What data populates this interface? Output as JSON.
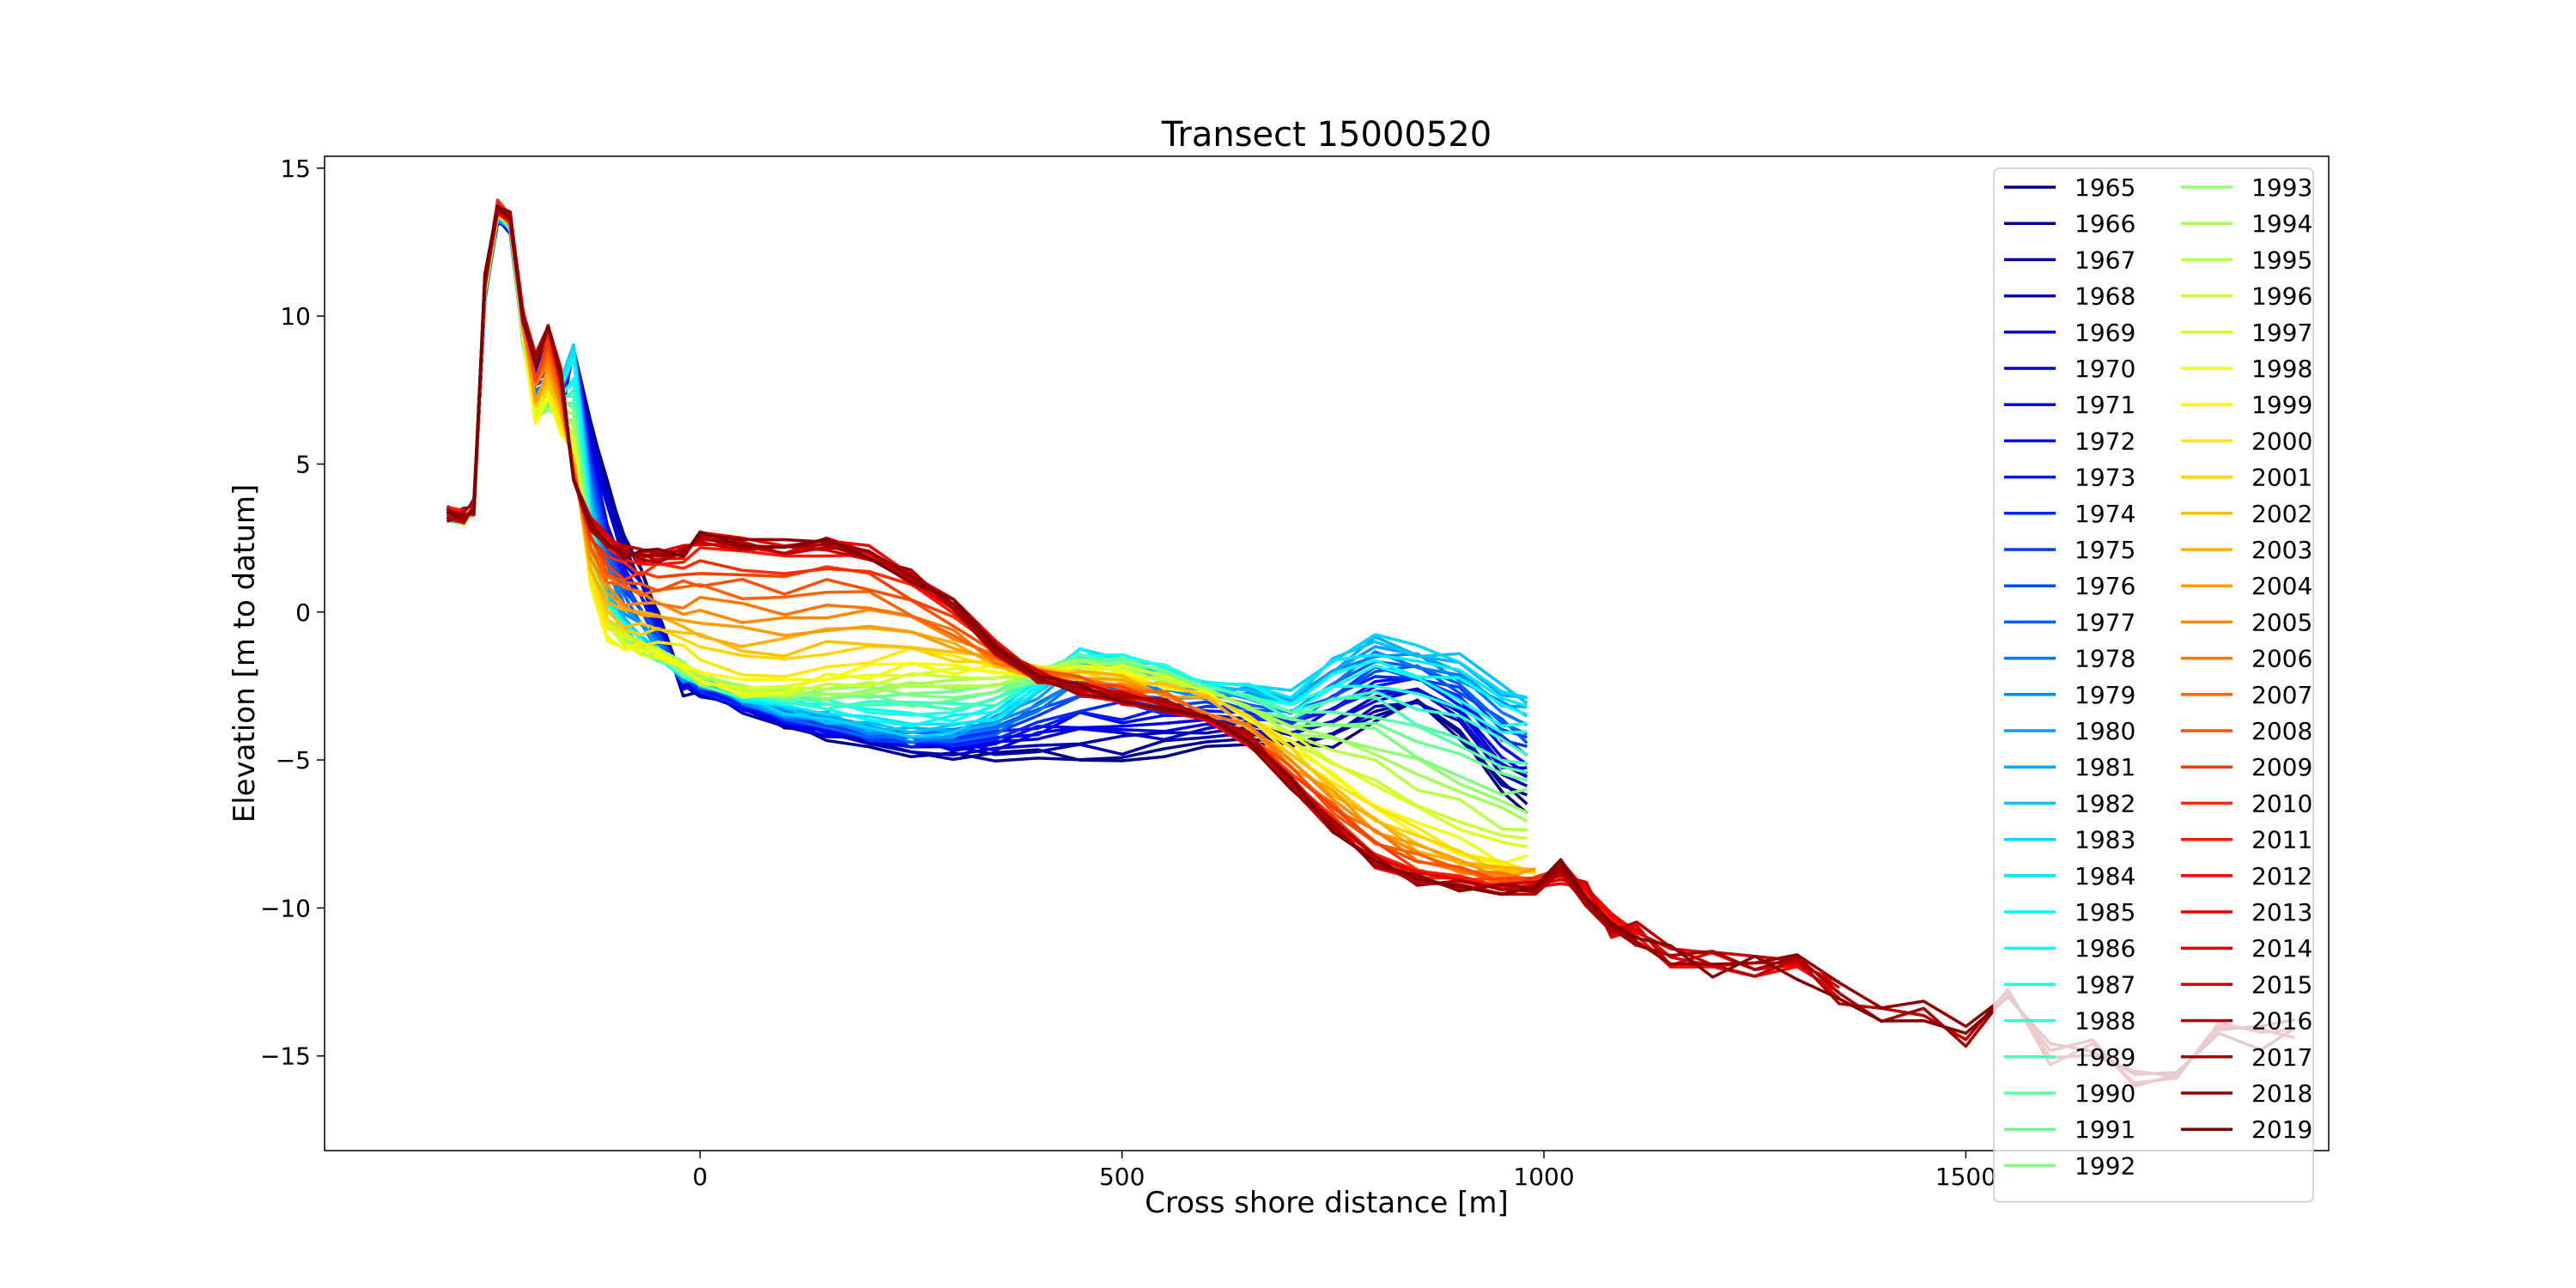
{
  "chart_data": {
    "type": "line",
    "title": "Transect 15000520",
    "xlabel": "Cross shore distance [m]",
    "ylabel": "Elevation [m to datum]",
    "xlim": [
      -445,
      1930
    ],
    "ylim": [
      -18.2,
      15.4
    ],
    "xticks": [
      0,
      500,
      1000,
      1500
    ],
    "yticks": [
      15,
      10,
      5,
      0,
      -5,
      -10,
      -15
    ],
    "grid": false,
    "legend_position": "right",
    "legend_columns": 2,
    "colormap": "jet",
    "years": [
      1965,
      1966,
      1967,
      1968,
      1969,
      1970,
      1971,
      1972,
      1973,
      1974,
      1975,
      1976,
      1977,
      1978,
      1979,
      1980,
      1981,
      1982,
      1983,
      1984,
      1985,
      1986,
      1987,
      1988,
      1989,
      1990,
      1991,
      1992,
      1993,
      1994,
      1995,
      1996,
      1997,
      1998,
      1999,
      2000,
      2001,
      2002,
      2003,
      2004,
      2005,
      2006,
      2007,
      2008,
      2009,
      2010,
      2011,
      2012,
      2013,
      2014,
      2015,
      2016,
      2017,
      2018,
      2019
    ],
    "profile_keypoints_note": "",
    "series_templates": {
      "early": {
        "x": [
          -300,
          -280,
          -268,
          -255,
          -240,
          -225,
          -210,
          -195,
          -180,
          -165,
          -150,
          -130,
          -110,
          -90,
          -70,
          -50,
          -20,
          0,
          50,
          100,
          150,
          200,
          250,
          300,
          350,
          400,
          450,
          500,
          550,
          600,
          650,
          700,
          750,
          800,
          850,
          900,
          950,
          980
        ],
        "y": [
          3.4,
          3.3,
          3.6,
          10.5,
          13.3,
          13.0,
          9.5,
          8.6,
          9.3,
          6.5,
          8.8,
          6.5,
          4.5,
          2.5,
          1.5,
          0.0,
          -2.6,
          -2.7,
          -3.3,
          -3.8,
          -4.2,
          -4.5,
          -4.7,
          -4.8,
          -4.9,
          -4.9,
          -5.0,
          -5.0,
          -4.8,
          -4.5,
          -4.3,
          -4.6,
          -4.5,
          -3.6,
          -3.2,
          -4.2,
          -6.0,
          -6.6
        ]
      },
      "mid": {
        "x": [
          -300,
          -280,
          -268,
          -255,
          -240,
          -225,
          -210,
          -195,
          -180,
          -165,
          -150,
          -130,
          -110,
          -90,
          -70,
          -50,
          -20,
          0,
          50,
          100,
          150,
          200,
          250,
          300,
          350,
          400,
          450,
          500,
          550,
          600,
          650,
          700,
          750,
          800,
          850,
          900,
          950,
          980
        ],
        "y": [
          3.3,
          3.2,
          3.5,
          10.8,
          13.5,
          13.1,
          9.3,
          7.0,
          7.2,
          7.8,
          8.8,
          3.5,
          0.5,
          -0.5,
          -1.0,
          -1.5,
          -2.0,
          -2.3,
          -2.8,
          -3.2,
          -3.5,
          -3.8,
          -4.0,
          -3.9,
          -3.5,
          -2.5,
          -1.3,
          -1.5,
          -1.8,
          -2.2,
          -2.5,
          -2.8,
          -1.5,
          -0.8,
          -1.2,
          -1.5,
          -2.5,
          -2.7
        ]
      },
      "late_mid": {
        "x": [
          -300,
          -280,
          -268,
          -255,
          -240,
          -225,
          -210,
          -195,
          -180,
          -165,
          -150,
          -130,
          -110,
          -90,
          -70,
          -50,
          -20,
          0,
          50,
          100,
          150,
          200,
          250,
          300,
          350,
          400,
          450,
          500,
          550,
          600,
          650,
          700,
          750,
          800,
          850,
          900,
          950,
          990
        ],
        "y": [
          3.3,
          3.2,
          3.5,
          11.0,
          13.6,
          13.2,
          9.5,
          6.5,
          7.0,
          6.2,
          5.5,
          1.0,
          -0.8,
          -1.2,
          -1.3,
          -1.4,
          -1.8,
          -2.2,
          -2.6,
          -2.6,
          -2.3,
          -2.0,
          -1.8,
          -1.8,
          -1.9,
          -2.0,
          -2.0,
          -2.1,
          -2.4,
          -2.9,
          -3.6,
          -4.5,
          -5.6,
          -6.5,
          -7.3,
          -8.0,
          -8.5,
          -8.6
        ]
      },
      "late": {
        "x": [
          -300,
          -280,
          -268,
          -255,
          -240,
          -225,
          -210,
          -195,
          -180,
          -165,
          -150,
          -130,
          -110,
          -90,
          -70,
          -50,
          -20,
          0,
          50,
          100,
          150,
          200,
          250,
          300,
          350,
          400,
          450,
          500,
          550,
          600,
          650,
          700,
          750,
          800,
          850,
          900,
          950,
          990
        ],
        "y": [
          3.3,
          3.2,
          3.5,
          11.2,
          13.7,
          13.3,
          10.0,
          8.5,
          9.6,
          8.0,
          4.5,
          3.0,
          2.4,
          2.0,
          1.9,
          1.9,
          2.0,
          2.5,
          2.3,
          2.2,
          2.3,
          2.0,
          1.2,
          0.2,
          -1.2,
          -2.2,
          -2.6,
          -2.9,
          -3.2,
          -3.6,
          -4.3,
          -5.8,
          -7.2,
          -8.4,
          -9.0,
          -9.2,
          -9.3,
          -9.3
        ]
      },
      "offshore_tail": {
        "x": [
          990,
          1020,
          1050,
          1080,
          1110,
          1150,
          1200,
          1250,
          1300,
          1350,
          1400,
          1450,
          1500,
          1550,
          1600,
          1650,
          1700,
          1750,
          1800,
          1850,
          1890
        ],
        "y": [
          -9.3,
          -8.8,
          -9.5,
          -10.6,
          -10.9,
          -11.6,
          -11.9,
          -12.0,
          -12.0,
          -12.8,
          -13.4,
          -13.6,
          -14.3,
          -12.7,
          -15.0,
          -14.9,
          -15.8,
          -15.6,
          -14.3,
          -14.4,
          -14.0
        ]
      }
    }
  }
}
